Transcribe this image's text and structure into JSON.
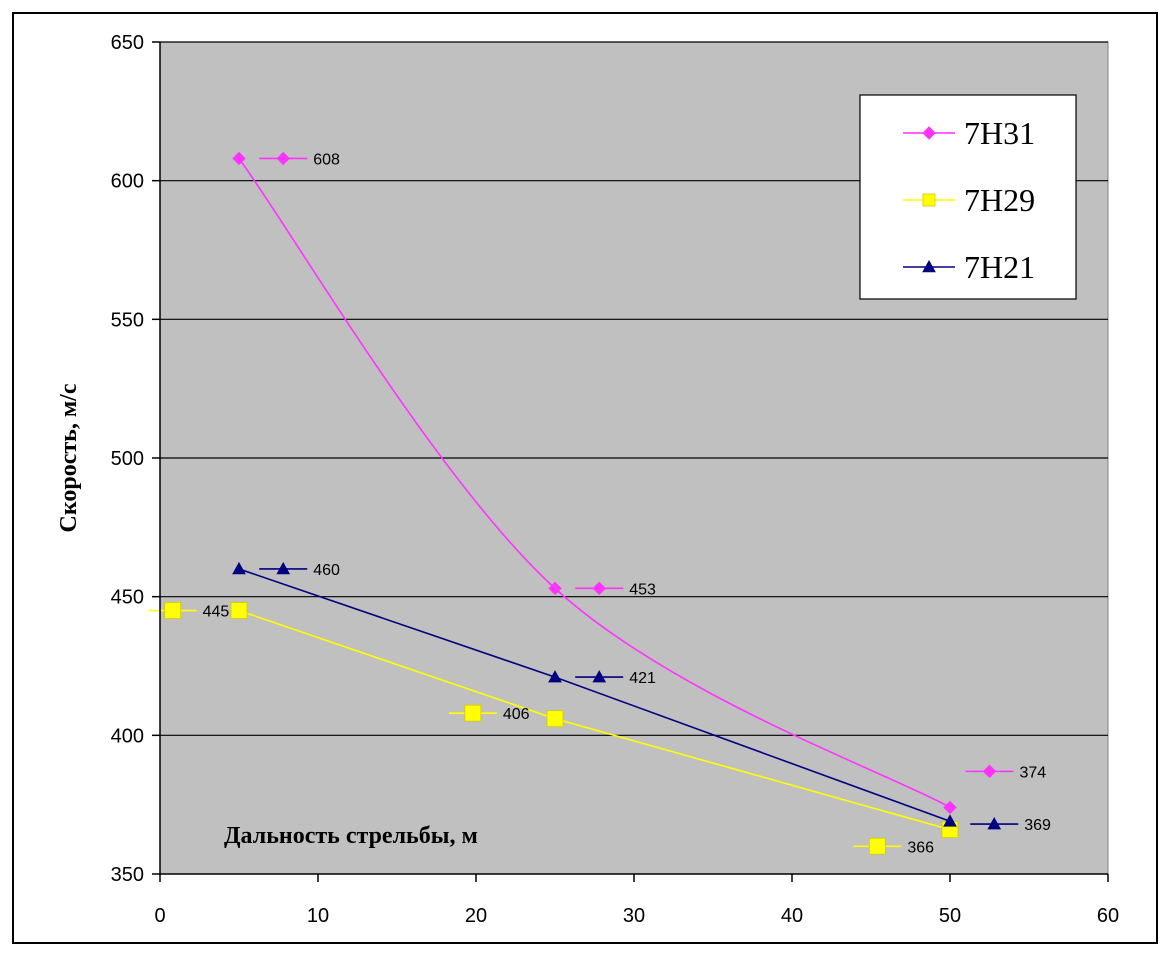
{
  "chart_data": {
    "type": "line",
    "title": "",
    "xlabel": "Дальность стрельбы, м",
    "ylabel": "Скорость, м/с",
    "xlim": [
      0,
      60
    ],
    "ylim": [
      350,
      650
    ],
    "x_ticks": [
      0,
      10,
      20,
      30,
      40,
      50,
      60
    ],
    "y_ticks": [
      350,
      400,
      450,
      500,
      550,
      600,
      650
    ],
    "grid": "horizontal",
    "legend_position": "top-right",
    "background": "#c0c0c0",
    "series": [
      {
        "name": "7Н31",
        "color": "#ff33ff",
        "marker": "diamond",
        "smooth": true,
        "x": [
          5,
          25,
          50
        ],
        "y": [
          608,
          453,
          374
        ],
        "labels": [
          "608",
          "453",
          "374"
        ]
      },
      {
        "name": "7Н29",
        "color": "#ffff00",
        "marker": "square",
        "smooth": false,
        "x": [
          5,
          25,
          50
        ],
        "y": [
          445,
          406,
          366
        ],
        "labels": [
          "445",
          "406",
          "366"
        ]
      },
      {
        "name": "7Н21",
        "color": "#000080",
        "marker": "triangle",
        "smooth": false,
        "x": [
          5,
          25,
          50
        ],
        "y": [
          460,
          421,
          369
        ],
        "labels": [
          "460",
          "421",
          "369"
        ]
      }
    ]
  }
}
